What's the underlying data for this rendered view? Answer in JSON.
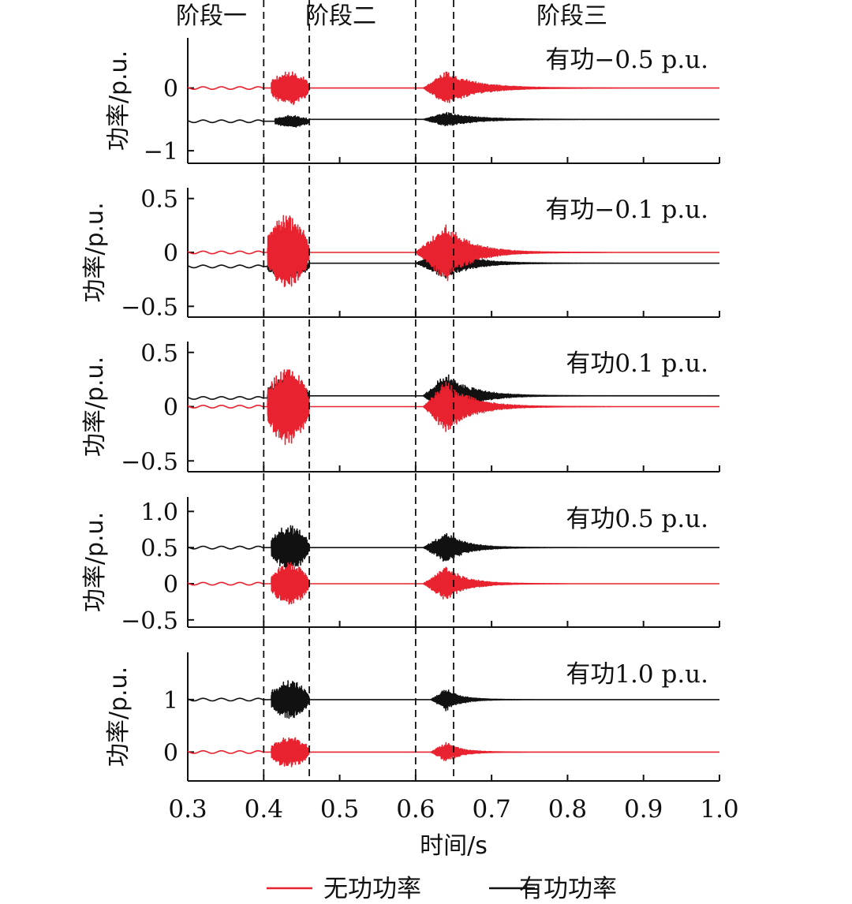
{
  "chart_data": {
    "type": "line",
    "stages": [
      {
        "label": "阶段一",
        "x_start": 0.3,
        "x_end": 0.4
      },
      {
        "label": "阶段二",
        "x_start": 0.4,
        "x_end": 0.6
      },
      {
        "label": "阶段三",
        "x_start": 0.6,
        "x_end": 1.0
      }
    ],
    "stage_boundaries": [
      0.4,
      0.46,
      0.6,
      0.65
    ],
    "xlabel": "时间/s",
    "xlim": [
      0.3,
      1.0
    ],
    "xticks": [
      "0.3",
      "0.4",
      "0.5",
      "0.6",
      "0.7",
      "0.8",
      "0.9",
      "1.0"
    ],
    "legend": {
      "placement": "bottom-center",
      "entries": [
        {
          "name": "无功功率",
          "color": "#e8232f"
        },
        {
          "name": "有功功率",
          "color": "#111111"
        }
      ]
    },
    "panels": [
      {
        "title": "有功−0.5 p.u.",
        "ylabel": "功率/p.u.",
        "ylim": [
          -1.2,
          0.8
        ],
        "yticks": [
          {
            "v": 0,
            "t": "0"
          },
          {
            "v": -1,
            "t": "−1"
          }
        ],
        "series": [
          {
            "name": "有功功率",
            "baseline_before": -0.53,
            "baseline_after": -0.5,
            "burst1": {
              "t0": 0.415,
              "t1": 0.46,
              "amp": 0.1
            },
            "burst2": {
              "t0": 0.61,
              "peak": 0.64,
              "amp": 0.12,
              "decay": 0.12
            }
          },
          {
            "name": "无功功率",
            "baseline_before": 0.0,
            "baseline_after": 0.0,
            "burst1": {
              "t0": 0.41,
              "t1": 0.46,
              "amp": 0.28
            },
            "burst2": {
              "t0": 0.61,
              "peak": 0.64,
              "amp": 0.28,
              "decay": 0.12
            }
          }
        ]
      },
      {
        "title": "有功−0.1 p.u.",
        "ylabel": "功率/p.u.",
        "ylim": [
          -0.6,
          0.6
        ],
        "yticks": [
          {
            "v": 0.5,
            "t": "0.5"
          },
          {
            "v": 0,
            "t": "0"
          },
          {
            "v": -0.5,
            "t": "−0.5"
          }
        ],
        "series": [
          {
            "name": "有功功率",
            "baseline_before": -0.13,
            "baseline_after": -0.1,
            "burst1": {
              "t0": 0.405,
              "t1": 0.46,
              "amp": 0.1
            },
            "burst2": {
              "t0": 0.6,
              "peak": 0.64,
              "amp": 0.15,
              "decay": 0.1
            }
          },
          {
            "name": "无功功率",
            "baseline_before": 0.0,
            "baseline_after": 0.0,
            "burst1": {
              "t0": 0.405,
              "t1": 0.46,
              "amp": 0.36
            },
            "burst2": {
              "t0": 0.6,
              "peak": 0.64,
              "amp": 0.28,
              "decay": 0.1
            }
          }
        ]
      },
      {
        "title": "有功0.1 p.u.",
        "ylabel": "功率/p.u.",
        "ylim": [
          -0.6,
          0.6
        ],
        "yticks": [
          {
            "v": 0.5,
            "t": "0.5"
          },
          {
            "v": 0,
            "t": "0"
          },
          {
            "v": -0.5,
            "t": "−0.5"
          }
        ],
        "series": [
          {
            "name": "有功功率",
            "baseline_before": 0.08,
            "baseline_after": 0.1,
            "burst1": {
              "t0": 0.405,
              "t1": 0.46,
              "amp": 0.22
            },
            "burst2": {
              "t0": 0.61,
              "peak": 0.64,
              "amp": 0.22,
              "decay": 0.1
            }
          },
          {
            "name": "无功功率",
            "baseline_before": 0.0,
            "baseline_after": 0.0,
            "burst1": {
              "t0": 0.405,
              "t1": 0.46,
              "amp": 0.38
            },
            "burst2": {
              "t0": 0.61,
              "peak": 0.64,
              "amp": 0.25,
              "decay": 0.1
            }
          }
        ]
      },
      {
        "title": "有功0.5 p.u.",
        "ylabel": "功率/p.u.",
        "ylim": [
          -0.6,
          1.2
        ],
        "yticks": [
          {
            "v": 1.0,
            "t": "1.0"
          },
          {
            "v": 0.5,
            "t": "0.5"
          },
          {
            "v": 0,
            "t": "0"
          },
          {
            "v": -0.5,
            "t": "−0.5"
          }
        ],
        "series": [
          {
            "name": "有功功率",
            "baseline_before": 0.5,
            "baseline_after": 0.5,
            "burst1": {
              "t0": 0.41,
              "t1": 0.46,
              "amp": 0.32
            },
            "burst2": {
              "t0": 0.61,
              "peak": 0.64,
              "amp": 0.22,
              "decay": 0.08
            }
          },
          {
            "name": "无功功率",
            "baseline_before": 0.0,
            "baseline_after": 0.0,
            "burst1": {
              "t0": 0.41,
              "t1": 0.46,
              "amp": 0.3
            },
            "burst2": {
              "t0": 0.61,
              "peak": 0.64,
              "amp": 0.25,
              "decay": 0.08
            }
          }
        ]
      },
      {
        "title": "有功1.0 p.u.",
        "ylabel": "功率/p.u.",
        "ylim": [
          -0.55,
          1.9
        ],
        "yticks": [
          {
            "v": 1,
            "t": "1"
          },
          {
            "v": 0,
            "t": "0"
          }
        ],
        "series": [
          {
            "name": "有功功率",
            "baseline_before": 1.0,
            "baseline_after": 1.0,
            "burst1": {
              "t0": 0.41,
              "t1": 0.46,
              "amp": 0.38
            },
            "burst2": {
              "t0": 0.62,
              "peak": 0.64,
              "amp": 0.22,
              "decay": 0.06
            }
          },
          {
            "name": "无功功率",
            "baseline_before": 0.0,
            "baseline_after": 0.0,
            "burst1": {
              "t0": 0.41,
              "t1": 0.46,
              "amp": 0.3
            },
            "burst2": {
              "t0": 0.62,
              "peak": 0.64,
              "amp": 0.2,
              "decay": 0.06
            }
          }
        ]
      }
    ]
  }
}
